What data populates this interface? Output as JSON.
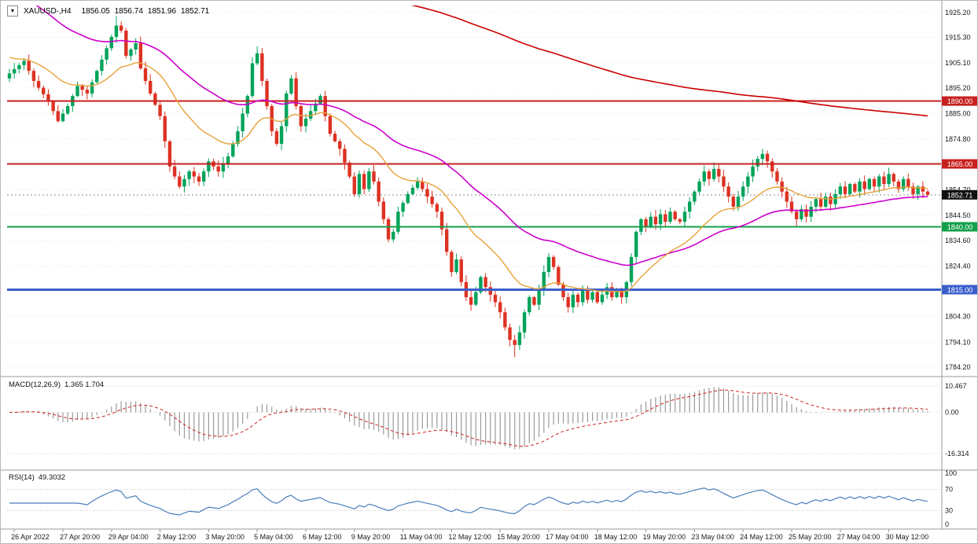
{
  "header": {
    "symbol": "XAUUSD-,H4",
    "open": "1856.05",
    "high": "1856.74",
    "low": "1851.96",
    "close": "1852.71"
  },
  "indicators": {
    "macd": {
      "label": "MACD(12,26,9)",
      "values": "1.365 1.704",
      "fast": 12,
      "slow": 26,
      "signal": 9,
      "axis_labels": [
        "10.467",
        "0.00",
        "-16.314"
      ],
      "axis_values": [
        10.467,
        0,
        -16.314
      ],
      "ymax": 13,
      "ymin": -22
    },
    "rsi": {
      "label": "RSI(14)",
      "value": "49.3032",
      "period": 14,
      "axis_labels": [
        "100",
        "70",
        "30",
        "0"
      ],
      "axis_values": [
        100,
        70,
        30,
        0
      ],
      "levels": [
        70,
        30
      ]
    }
  },
  "chart_data": {
    "type": "candlestick",
    "symbol": "XAUUSD",
    "timeframe": "H4",
    "title": "XAUUSD-,H4 1856.05 1856.74 1851.96 1852.71",
    "x_axis": {
      "labels": [
        "26 Apr 2022",
        "27 Apr 20:00",
        "29 Apr 04:00",
        "2 May 12:00",
        "3 May 20:00",
        "5 May 04:00",
        "6 May 12:00",
        "9 May 20:00",
        "11 May 04:00",
        "12 May 12:00",
        "15 May 20:00",
        "17 May 04:00",
        "18 May 12:00",
        "19 May 20:00",
        "23 May 04:00",
        "24 May 12:00",
        "25 May 20:00",
        "27 May 04:00",
        "30 May 12:00"
      ],
      "first_index": 1,
      "step": 10
    },
    "price_axis": {
      "labels": [
        "1925.20",
        "1915.30",
        "1905.10",
        "1895.20",
        "1885.00",
        "1874.80",
        "1864.90",
        "1854.70",
        "1844.50",
        "1834.60",
        "1824.40",
        "1814.50",
        "1804.30",
        "1794.10",
        "1784.20"
      ],
      "max": 1928,
      "min": 1782
    },
    "first_open": 1899,
    "closes": [
      1901,
      1902.7,
      1904.3,
      1906,
      1902,
      1898,
      1895.3,
      1892.7,
      1890,
      1886,
      1882,
      1885,
      1888,
      1892,
      1896,
      1894.5,
      1893,
      1897.5,
      1902,
      1906.5,
      1911,
      1915.5,
      1920,
      1918,
      1908,
      1910.5,
      1913,
      1903,
      1898,
      1893,
      1888.5,
      1884,
      1874,
      1864,
      1860,
      1856,
      1859,
      1862,
      1860,
      1858,
      1862,
      1866,
      1864,
      1862,
      1865,
      1868,
      1873,
      1878,
      1885,
      1892,
      1905,
      1909,
      1898,
      1888,
      1878,
      1873,
      1880,
      1893,
      1899,
      1888,
      1880,
      1883,
      1886,
      1889,
      1892,
      1884,
      1877,
      1874,
      1871,
      1865.5,
      1860,
      1853,
      1861,
      1855,
      1862,
      1858,
      1850,
      1843,
      1835,
      1838,
      1846,
      1849.5,
      1853,
      1855.5,
      1858,
      1855,
      1852,
      1849,
      1846,
      1839,
      1830,
      1822,
      1827,
      1818,
      1812,
      1809,
      1814,
      1820,
      1816,
      1813,
      1810,
      1806,
      1800,
      1795,
      1793,
      1798,
      1806,
      1812,
      1809,
      1815,
      1822,
      1828,
      1824,
      1817,
      1812,
      1808,
      1813,
      1810,
      1815,
      1811,
      1814,
      1810,
      1813,
      1816,
      1812,
      1815,
      1812,
      1818,
      1828,
      1838,
      1843,
      1840,
      1844,
      1841,
      1845,
      1842,
      1846,
      1843,
      1842,
      1846,
      1850,
      1854,
      1858,
      1862,
      1859,
      1863,
      1860,
      1856,
      1852,
      1848,
      1852,
      1856,
      1860,
      1864,
      1867,
      1869,
      1866,
      1862,
      1858,
      1854,
      1850,
      1846,
      1843,
      1847,
      1844,
      1848,
      1851,
      1848,
      1852,
      1849,
      1853,
      1856,
      1853,
      1857,
      1854,
      1858,
      1855,
      1859,
      1856,
      1860,
      1857,
      1861,
      1858,
      1855,
      1859,
      1856,
      1853,
      1856,
      1854,
      1852.7
    ],
    "hlines": [
      {
        "name": "hline-1890",
        "value": 1890.0,
        "label": "1890.00",
        "color": "#c81f1f",
        "width": 2
      },
      {
        "name": "hline-1865",
        "value": 1865.0,
        "label": "1865.00",
        "color": "#c81f1f",
        "width": 2
      },
      {
        "name": "hline-1840",
        "value": 1840.0,
        "label": "1840.00",
        "color": "#12a04b",
        "width": 2
      },
      {
        "name": "hline-1815",
        "value": 1815.0,
        "label": "1815.00",
        "color": "#3a5fcd",
        "width": 3
      }
    ],
    "current_price": {
      "value": 1852.71,
      "label": "1852.71"
    },
    "moving_averages": [
      {
        "name": "ma-slow",
        "period": 300,
        "seed": 1965,
        "color": "#cc0000",
        "width": 1.6
      },
      {
        "name": "ma-mid",
        "period": 50,
        "seed": 1936,
        "color": "#cc00cc",
        "width": 1.6
      },
      {
        "name": "ma-fast",
        "period": 21,
        "seed": 1908,
        "color": "#e6a23c",
        "width": 1.4
      }
    ],
    "colors": {
      "background": "#ffffff",
      "up": "#00a35a",
      "down": "#dd3222",
      "grid": "#ebebeb",
      "separator": "#9a9a9a",
      "axis_text": "#1a1a1a",
      "current_price_bg": "#111111",
      "current_price_dash": "#8a8a8a",
      "macd_hist": "#9a9a9a",
      "macd_signal": "#cc2222",
      "rsi_line": "#4a7ebb"
    }
  }
}
